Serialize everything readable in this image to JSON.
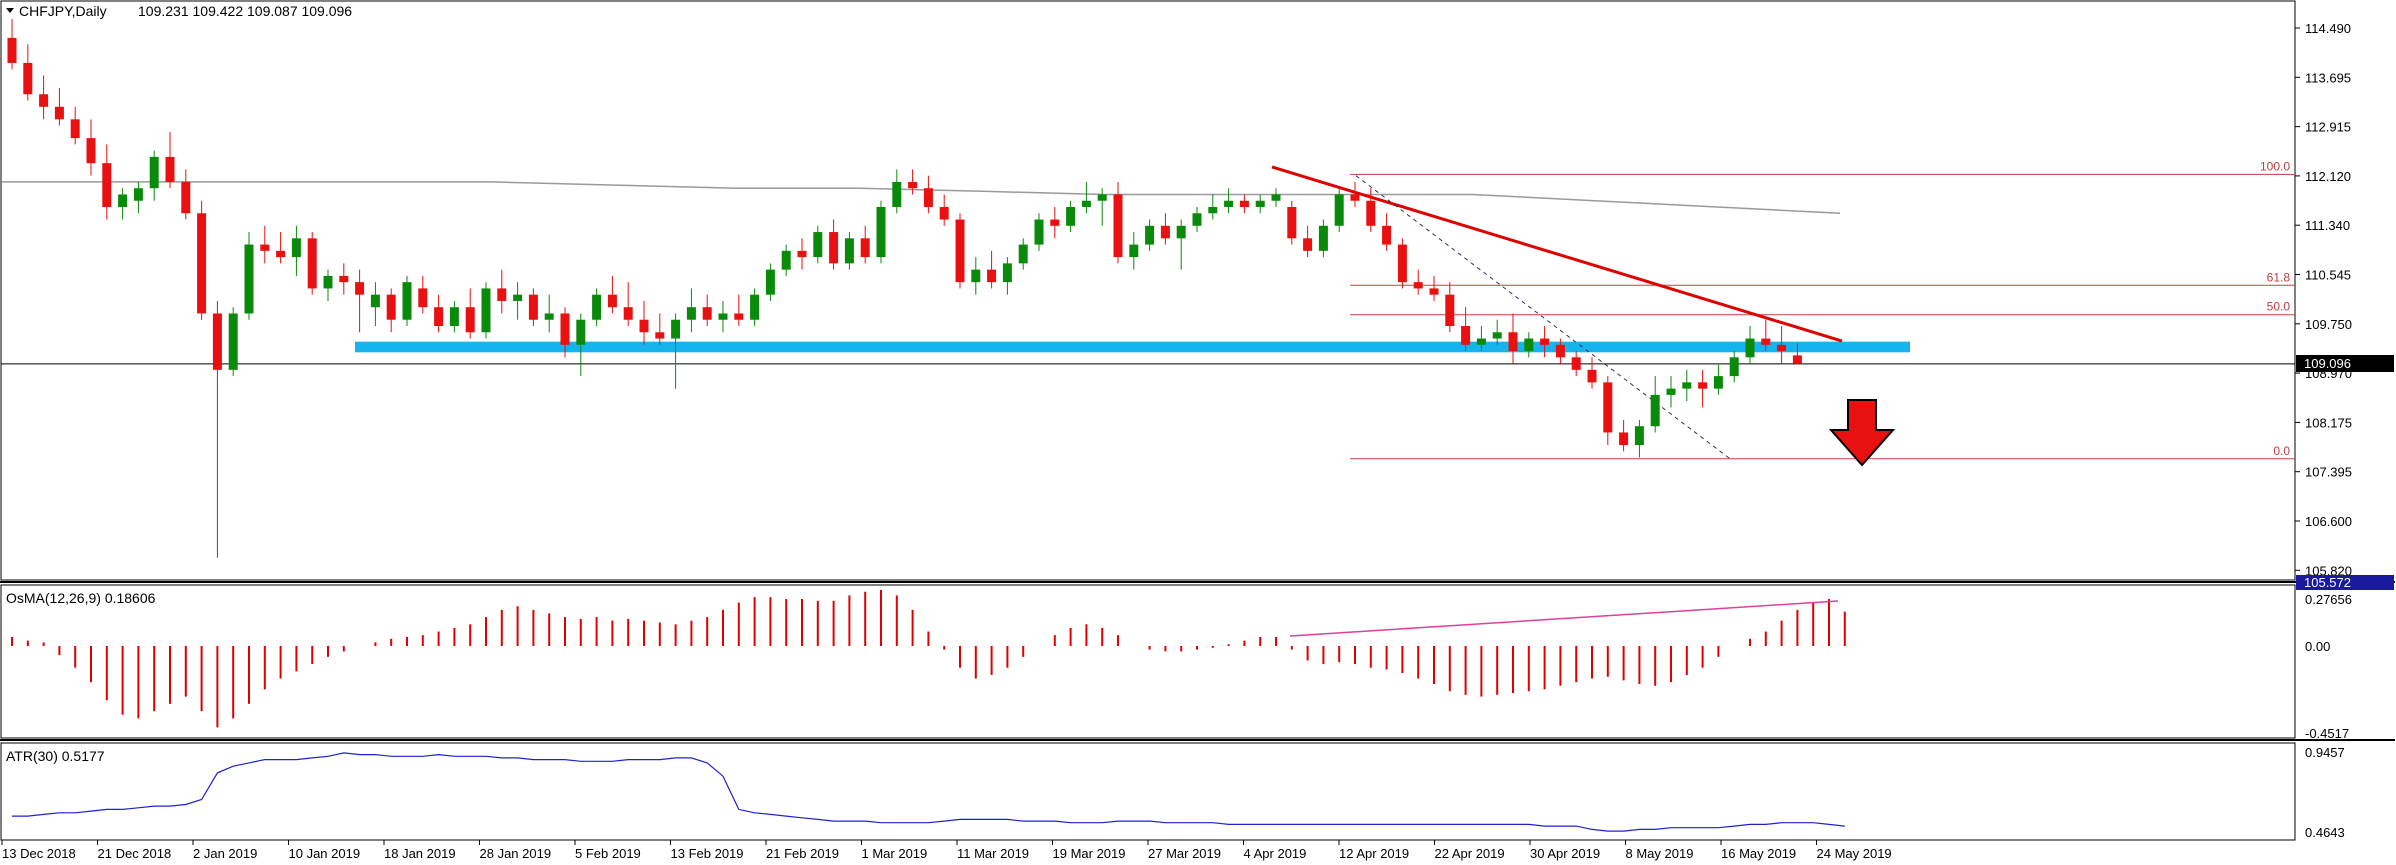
{
  "header": {
    "symbol": "CHFJPY,Daily",
    "ohlc": "109.231 109.422 109.087 109.096"
  },
  "main_axis": {
    "ticks": [
      "114.490",
      "113.695",
      "112.915",
      "112.120",
      "111.340",
      "110.545",
      "109.750",
      "108.970",
      "108.175",
      "107.395",
      "106.600",
      "105.820"
    ],
    "current_price_label": "109.096",
    "lower_badge": "105.572"
  },
  "osma": {
    "label": "OsMA(12,26,9) 0.18606",
    "ticks": [
      "0.27656",
      "0.00",
      "-0.4517"
    ]
  },
  "atr": {
    "label": "ATR(30) 0.5177",
    "ticks": [
      "0.9457",
      "0.4643"
    ]
  },
  "time_axis": [
    "13 Dec 2018",
    "21 Dec 2018",
    "2 Jan 2019",
    "10 Jan 2019",
    "18 Jan 2019",
    "28 Jan 2019",
    "5 Feb 2019",
    "13 Feb 2019",
    "21 Feb 2019",
    "1 Mar 2019",
    "11 Mar 2019",
    "19 Mar 2019",
    "27 Mar 2019",
    "4 Apr 2019",
    "12 Apr 2019",
    "22 Apr 2019",
    "30 Apr 2019",
    "8 May 2019",
    "16 May 2019",
    "24 May 2019"
  ],
  "fibonacci": [
    "100.0",
    "61.8",
    "50.0",
    "0.0"
  ],
  "colors": {
    "bull": "#0a8a0a",
    "bear": "#e81010",
    "support": "#15b4ee",
    "trend": "#e00000",
    "atr": "#2020d0",
    "osma": "#e00000",
    "fib": "#c04040"
  },
  "chart_data": {
    "type": "candlestick",
    "title": "CHFJPY,Daily",
    "ylim": [
      105.5,
      114.9
    ],
    "ohlc": [
      [
        114.3,
        114.6,
        113.8,
        113.9
      ],
      [
        113.9,
        114.2,
        113.3,
        113.4
      ],
      [
        113.4,
        113.7,
        113.0,
        113.2
      ],
      [
        113.2,
        113.5,
        112.9,
        113.0
      ],
      [
        113.0,
        113.2,
        112.6,
        112.7
      ],
      [
        112.7,
        113.0,
        112.1,
        112.3
      ],
      [
        112.3,
        112.6,
        111.4,
        111.6
      ],
      [
        111.6,
        111.9,
        111.4,
        111.8
      ],
      [
        111.7,
        112.0,
        111.5,
        111.9
      ],
      [
        111.9,
        112.5,
        111.7,
        112.4
      ],
      [
        112.4,
        112.8,
        111.9,
        112.0
      ],
      [
        112.0,
        112.2,
        111.4,
        111.5
      ],
      [
        111.5,
        111.7,
        109.8,
        109.9
      ],
      [
        109.9,
        110.1,
        106.0,
        109.0
      ],
      [
        109.0,
        110.0,
        108.9,
        109.9
      ],
      [
        109.9,
        111.2,
        109.8,
        111.0
      ],
      [
        111.0,
        111.3,
        110.7,
        110.9
      ],
      [
        110.9,
        111.2,
        110.7,
        110.8
      ],
      [
        110.8,
        111.3,
        110.5,
        111.1
      ],
      [
        111.1,
        111.2,
        110.2,
        110.3
      ],
      [
        110.3,
        110.6,
        110.1,
        110.5
      ],
      [
        110.5,
        110.7,
        110.2,
        110.4
      ],
      [
        110.4,
        110.6,
        109.6,
        110.2
      ],
      [
        110.0,
        110.4,
        109.7,
        110.2
      ],
      [
        110.2,
        110.3,
        109.6,
        109.8
      ],
      [
        109.8,
        110.5,
        109.7,
        110.4
      ],
      [
        110.3,
        110.5,
        109.9,
        110.0
      ],
      [
        110.0,
        110.2,
        109.6,
        109.7
      ],
      [
        109.7,
        110.1,
        109.6,
        110.0
      ],
      [
        110.0,
        110.3,
        109.5,
        109.6
      ],
      [
        109.6,
        110.4,
        109.5,
        110.3
      ],
      [
        110.3,
        110.6,
        109.9,
        110.1
      ],
      [
        110.1,
        110.4,
        109.8,
        110.2
      ],
      [
        110.2,
        110.3,
        109.7,
        109.8
      ],
      [
        109.8,
        110.2,
        109.6,
        109.9
      ],
      [
        109.9,
        110.0,
        109.2,
        109.4
      ],
      [
        109.4,
        109.9,
        108.9,
        109.8
      ],
      [
        109.8,
        110.3,
        109.7,
        110.2
      ],
      [
        110.2,
        110.5,
        109.9,
        110.0
      ],
      [
        110.0,
        110.4,
        109.7,
        109.8
      ],
      [
        109.8,
        110.1,
        109.4,
        109.6
      ],
      [
        109.6,
        109.9,
        109.4,
        109.5
      ],
      [
        109.5,
        109.9,
        108.7,
        109.8
      ],
      [
        109.8,
        110.3,
        109.6,
        110.0
      ],
      [
        110.0,
        110.2,
        109.7,
        109.8
      ],
      [
        109.8,
        110.1,
        109.6,
        109.9
      ],
      [
        109.9,
        110.2,
        109.7,
        109.8
      ],
      [
        109.8,
        110.3,
        109.7,
        110.2
      ],
      [
        110.2,
        110.7,
        110.1,
        110.6
      ],
      [
        110.6,
        111.0,
        110.5,
        110.9
      ],
      [
        110.9,
        111.1,
        110.6,
        110.8
      ],
      [
        110.8,
        111.3,
        110.7,
        111.2
      ],
      [
        111.2,
        111.4,
        110.6,
        110.7
      ],
      [
        110.7,
        111.2,
        110.6,
        111.1
      ],
      [
        111.1,
        111.3,
        110.7,
        110.8
      ],
      [
        110.8,
        111.7,
        110.7,
        111.6
      ],
      [
        111.6,
        112.2,
        111.5,
        112.0
      ],
      [
        112.0,
        112.2,
        111.8,
        111.9
      ],
      [
        111.9,
        112.1,
        111.5,
        111.6
      ],
      [
        111.6,
        111.8,
        111.3,
        111.4
      ],
      [
        111.4,
        111.5,
        110.3,
        110.4
      ],
      [
        110.4,
        110.8,
        110.2,
        110.6
      ],
      [
        110.6,
        110.9,
        110.3,
        110.4
      ],
      [
        110.4,
        110.8,
        110.2,
        110.7
      ],
      [
        110.7,
        111.1,
        110.6,
        111.0
      ],
      [
        111.0,
        111.5,
        110.9,
        111.4
      ],
      [
        111.4,
        111.6,
        111.1,
        111.3
      ],
      [
        111.3,
        111.7,
        111.2,
        111.6
      ],
      [
        111.6,
        112.0,
        111.5,
        111.7
      ],
      [
        111.7,
        111.9,
        111.3,
        111.8
      ],
      [
        111.8,
        112.0,
        110.7,
        110.8
      ],
      [
        110.8,
        111.2,
        110.6,
        111.0
      ],
      [
        111.0,
        111.4,
        110.9,
        111.3
      ],
      [
        111.3,
        111.5,
        111.0,
        111.1
      ],
      [
        111.1,
        111.4,
        110.6,
        111.3
      ],
      [
        111.3,
        111.6,
        111.2,
        111.5
      ],
      [
        111.5,
        111.8,
        111.4,
        111.6
      ],
      [
        111.6,
        111.9,
        111.5,
        111.7
      ],
      [
        111.7,
        111.8,
        111.5,
        111.6
      ],
      [
        111.6,
        111.8,
        111.5,
        111.7
      ],
      [
        111.7,
        111.9,
        111.6,
        111.8
      ],
      [
        111.6,
        111.7,
        111.0,
        111.1
      ],
      [
        111.1,
        111.3,
        110.8,
        110.9
      ],
      [
        110.9,
        111.4,
        110.8,
        111.3
      ],
      [
        111.3,
        111.9,
        111.2,
        111.8
      ],
      [
        111.8,
        112.0,
        111.6,
        111.7
      ],
      [
        111.7,
        111.9,
        111.2,
        111.3
      ],
      [
        111.3,
        111.5,
        110.9,
        111.0
      ],
      [
        111.0,
        111.1,
        110.3,
        110.4
      ],
      [
        110.4,
        110.6,
        110.2,
        110.3
      ],
      [
        110.3,
        110.5,
        110.1,
        110.2
      ],
      [
        110.2,
        110.4,
        109.6,
        109.7
      ],
      [
        109.7,
        110.0,
        109.3,
        109.4
      ],
      [
        109.4,
        109.7,
        109.3,
        109.5
      ],
      [
        109.5,
        109.8,
        109.4,
        109.6
      ],
      [
        109.6,
        109.9,
        109.1,
        109.3
      ],
      [
        109.3,
        109.6,
        109.2,
        109.5
      ],
      [
        109.5,
        109.7,
        109.2,
        109.4
      ],
      [
        109.4,
        109.5,
        109.1,
        109.2
      ],
      [
        109.2,
        109.3,
        108.9,
        109.0
      ],
      [
        109.0,
        109.2,
        108.7,
        108.8
      ],
      [
        108.8,
        108.9,
        107.8,
        108.0
      ],
      [
        108.0,
        108.2,
        107.7,
        107.8
      ],
      [
        107.8,
        108.2,
        107.6,
        108.1
      ],
      [
        108.1,
        108.9,
        108.0,
        108.6
      ],
      [
        108.6,
        108.9,
        108.4,
        108.7
      ],
      [
        108.7,
        109.0,
        108.5,
        108.8
      ],
      [
        108.8,
        109.0,
        108.4,
        108.7
      ],
      [
        108.7,
        109.1,
        108.6,
        108.9
      ],
      [
        108.9,
        109.3,
        108.8,
        109.2
      ],
      [
        109.2,
        109.7,
        109.1,
        109.5
      ],
      [
        109.5,
        109.8,
        109.3,
        109.4
      ],
      [
        109.4,
        109.7,
        109.1,
        109.3
      ],
      [
        109.231,
        109.422,
        109.087,
        109.096
      ]
    ],
    "ma_200": [
      112.0,
      112.0,
      112.0,
      112.0,
      112.0,
      111.95,
      111.9,
      111.9,
      111.85,
      111.8,
      111.8,
      111.8,
      111.8,
      111.7,
      111.6,
      111.5
    ],
    "osma": [
      0.05,
      0.03,
      0.02,
      -0.05,
      -0.12,
      -0.2,
      -0.3,
      -0.38,
      -0.4,
      -0.36,
      -0.32,
      -0.28,
      -0.36,
      -0.45,
      -0.4,
      -0.32,
      -0.24,
      -0.18,
      -0.14,
      -0.1,
      -0.06,
      -0.03,
      0.0,
      0.02,
      0.04,
      0.05,
      0.06,
      0.08,
      0.1,
      0.12,
      0.16,
      0.2,
      0.22,
      0.2,
      0.18,
      0.16,
      0.15,
      0.16,
      0.14,
      0.15,
      0.14,
      0.13,
      0.12,
      0.14,
      0.16,
      0.2,
      0.24,
      0.27,
      0.27,
      0.26,
      0.26,
      0.25,
      0.25,
      0.28,
      0.3,
      0.31,
      0.28,
      0.2,
      0.08,
      -0.02,
      -0.12,
      -0.18,
      -0.16,
      -0.12,
      -0.06,
      0.0,
      0.06,
      0.1,
      0.12,
      0.1,
      0.06,
      0.0,
      -0.02,
      -0.03,
      -0.03,
      -0.02,
      -0.01,
      0.01,
      0.03,
      0.05,
      0.05,
      -0.02,
      -0.08,
      -0.1,
      -0.09,
      -0.1,
      -0.12,
      -0.13,
      -0.15,
      -0.18,
      -0.21,
      -0.25,
      -0.27,
      -0.28,
      -0.27,
      -0.26,
      -0.25,
      -0.24,
      -0.22,
      -0.2,
      -0.18,
      -0.17,
      -0.19,
      -0.21,
      -0.22,
      -0.2,
      -0.16,
      -0.12,
      -0.06,
      0.0,
      0.04,
      0.08,
      0.14,
      0.2,
      0.24,
      0.26,
      0.19
    ],
    "atr": [
      0.56,
      0.56,
      0.57,
      0.58,
      0.58,
      0.59,
      0.6,
      0.6,
      0.61,
      0.62,
      0.62,
      0.63,
      0.66,
      0.82,
      0.86,
      0.88,
      0.9,
      0.9,
      0.9,
      0.91,
      0.92,
      0.94,
      0.93,
      0.93,
      0.92,
      0.92,
      0.92,
      0.93,
      0.92,
      0.92,
      0.92,
      0.91,
      0.91,
      0.9,
      0.9,
      0.9,
      0.89,
      0.89,
      0.89,
      0.9,
      0.9,
      0.9,
      0.91,
      0.91,
      0.88,
      0.8,
      0.6,
      0.58,
      0.57,
      0.56,
      0.55,
      0.54,
      0.53,
      0.53,
      0.53,
      0.52,
      0.52,
      0.52,
      0.52,
      0.53,
      0.54,
      0.54,
      0.54,
      0.54,
      0.53,
      0.53,
      0.53,
      0.52,
      0.52,
      0.52,
      0.53,
      0.53,
      0.53,
      0.52,
      0.52,
      0.52,
      0.52,
      0.51,
      0.51,
      0.51,
      0.51,
      0.51,
      0.51,
      0.51,
      0.51,
      0.51,
      0.51,
      0.51,
      0.51,
      0.51,
      0.51,
      0.51,
      0.51,
      0.51,
      0.51,
      0.51,
      0.51,
      0.5,
      0.5,
      0.5,
      0.48,
      0.47,
      0.47,
      0.48,
      0.48,
      0.49,
      0.49,
      0.49,
      0.49,
      0.5,
      0.51,
      0.51,
      0.52,
      0.52,
      0.52,
      0.51,
      0.5
    ],
    "support_zone": [
      109.28,
      109.45
    ],
    "current_price": 109.096
  }
}
